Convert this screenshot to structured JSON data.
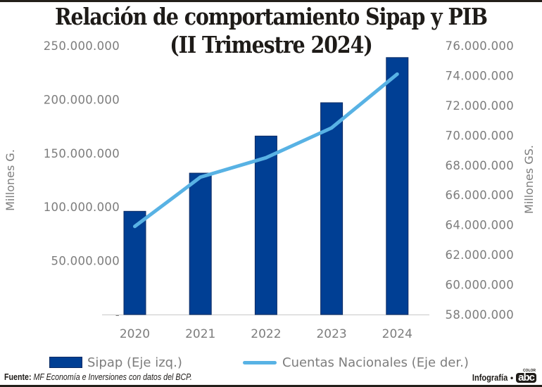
{
  "header": {
    "title_line1": "Relación de comportamiento Sipap y PIB",
    "title_line2": "(II Trimestre 2024)"
  },
  "colors": {
    "bar": "#003f94",
    "bar_border": "#0a2b63",
    "line": "#58b2e4",
    "axis_text": "#7d7d7d",
    "baseline": "#c8c8c8",
    "title": "#1e1b18"
  },
  "chart_data": {
    "type": "bar+line",
    "title": "Relación de comportamiento Sipap y PIB (II Trimestre 2024)",
    "categories": [
      "2020",
      "2021",
      "2022",
      "2023",
      "2024"
    ],
    "series": [
      {
        "name": "Sipap (Eje izq.)",
        "type": "bar",
        "axis": "left",
        "values": [
          96000000,
          131500000,
          166000000,
          197000000,
          239000000
        ]
      },
      {
        "name": "Cuentas Nacionales (Eje der.)",
        "type": "line",
        "axis": "right",
        "values": [
          63900000,
          67200000,
          68500000,
          70500000,
          74100000
        ]
      }
    ],
    "left_axis": {
      "label": "Millones G.",
      "range": [
        0,
        250000000
      ],
      "ticks": [
        0,
        50000000,
        100000000,
        150000000,
        200000000,
        250000000
      ],
      "tick_labels": [
        "-",
        "50.000.000",
        "100.000.000",
        "150.000.000",
        "200.000.000",
        "250.000.000"
      ]
    },
    "right_axis": {
      "label": "Millones GS.",
      "range": [
        58000000,
        76000000
      ],
      "ticks": [
        58000000,
        60000000,
        62000000,
        64000000,
        66000000,
        68000000,
        70000000,
        72000000,
        74000000,
        76000000
      ],
      "tick_labels": [
        "58.000.000",
        "60.000.000",
        "62.000.000",
        "64.000.000",
        "66.000.000",
        "68.000.000",
        "70.000.000",
        "72.000.000",
        "74.000.000",
        "76.000.000"
      ]
    },
    "grid": false,
    "legend_position": "bottom"
  },
  "legend": {
    "bar_label": "Sipap (Eje izq.)",
    "line_label": "Cuentas Nacionales (Eje der.)"
  },
  "footer": {
    "source_label": "Fuente:",
    "source_text": "MF Economía e Inversiones con datos del BCP.",
    "credit_text": "Infografía",
    "bullet": "•",
    "logo_text": "abc",
    "logo_tag": "COLOR"
  }
}
